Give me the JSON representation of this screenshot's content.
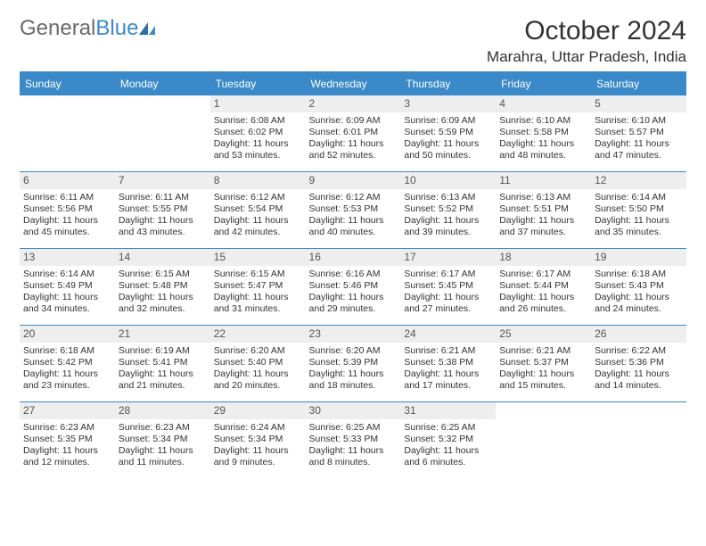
{
  "logo": {
    "text1": "General",
    "text2": "Blue"
  },
  "title": {
    "month": "October 2024",
    "location": "Marahra, Uttar Pradesh, India"
  },
  "colors": {
    "brand_blue": "#3a8ac9",
    "header_bg": "#3a8ac9",
    "header_text": "#ffffff",
    "daynum_bg": "#eeeeee",
    "text": "#333333",
    "logo_gray": "#6a6a6a"
  },
  "day_headers": [
    "Sunday",
    "Monday",
    "Tuesday",
    "Wednesday",
    "Thursday",
    "Friday",
    "Saturday"
  ],
  "weeks": [
    [
      null,
      null,
      {
        "n": "1",
        "sr": "Sunrise: 6:08 AM",
        "ss": "Sunset: 6:02 PM",
        "d1": "Daylight: 11 hours",
        "d2": "and 53 minutes."
      },
      {
        "n": "2",
        "sr": "Sunrise: 6:09 AM",
        "ss": "Sunset: 6:01 PM",
        "d1": "Daylight: 11 hours",
        "d2": "and 52 minutes."
      },
      {
        "n": "3",
        "sr": "Sunrise: 6:09 AM",
        "ss": "Sunset: 5:59 PM",
        "d1": "Daylight: 11 hours",
        "d2": "and 50 minutes."
      },
      {
        "n": "4",
        "sr": "Sunrise: 6:10 AM",
        "ss": "Sunset: 5:58 PM",
        "d1": "Daylight: 11 hours",
        "d2": "and 48 minutes."
      },
      {
        "n": "5",
        "sr": "Sunrise: 6:10 AM",
        "ss": "Sunset: 5:57 PM",
        "d1": "Daylight: 11 hours",
        "d2": "and 47 minutes."
      }
    ],
    [
      {
        "n": "6",
        "sr": "Sunrise: 6:11 AM",
        "ss": "Sunset: 5:56 PM",
        "d1": "Daylight: 11 hours",
        "d2": "and 45 minutes."
      },
      {
        "n": "7",
        "sr": "Sunrise: 6:11 AM",
        "ss": "Sunset: 5:55 PM",
        "d1": "Daylight: 11 hours",
        "d2": "and 43 minutes."
      },
      {
        "n": "8",
        "sr": "Sunrise: 6:12 AM",
        "ss": "Sunset: 5:54 PM",
        "d1": "Daylight: 11 hours",
        "d2": "and 42 minutes."
      },
      {
        "n": "9",
        "sr": "Sunrise: 6:12 AM",
        "ss": "Sunset: 5:53 PM",
        "d1": "Daylight: 11 hours",
        "d2": "and 40 minutes."
      },
      {
        "n": "10",
        "sr": "Sunrise: 6:13 AM",
        "ss": "Sunset: 5:52 PM",
        "d1": "Daylight: 11 hours",
        "d2": "and 39 minutes."
      },
      {
        "n": "11",
        "sr": "Sunrise: 6:13 AM",
        "ss": "Sunset: 5:51 PM",
        "d1": "Daylight: 11 hours",
        "d2": "and 37 minutes."
      },
      {
        "n": "12",
        "sr": "Sunrise: 6:14 AM",
        "ss": "Sunset: 5:50 PM",
        "d1": "Daylight: 11 hours",
        "d2": "and 35 minutes."
      }
    ],
    [
      {
        "n": "13",
        "sr": "Sunrise: 6:14 AM",
        "ss": "Sunset: 5:49 PM",
        "d1": "Daylight: 11 hours",
        "d2": "and 34 minutes."
      },
      {
        "n": "14",
        "sr": "Sunrise: 6:15 AM",
        "ss": "Sunset: 5:48 PM",
        "d1": "Daylight: 11 hours",
        "d2": "and 32 minutes."
      },
      {
        "n": "15",
        "sr": "Sunrise: 6:15 AM",
        "ss": "Sunset: 5:47 PM",
        "d1": "Daylight: 11 hours",
        "d2": "and 31 minutes."
      },
      {
        "n": "16",
        "sr": "Sunrise: 6:16 AM",
        "ss": "Sunset: 5:46 PM",
        "d1": "Daylight: 11 hours",
        "d2": "and 29 minutes."
      },
      {
        "n": "17",
        "sr": "Sunrise: 6:17 AM",
        "ss": "Sunset: 5:45 PM",
        "d1": "Daylight: 11 hours",
        "d2": "and 27 minutes."
      },
      {
        "n": "18",
        "sr": "Sunrise: 6:17 AM",
        "ss": "Sunset: 5:44 PM",
        "d1": "Daylight: 11 hours",
        "d2": "and 26 minutes."
      },
      {
        "n": "19",
        "sr": "Sunrise: 6:18 AM",
        "ss": "Sunset: 5:43 PM",
        "d1": "Daylight: 11 hours",
        "d2": "and 24 minutes."
      }
    ],
    [
      {
        "n": "20",
        "sr": "Sunrise: 6:18 AM",
        "ss": "Sunset: 5:42 PM",
        "d1": "Daylight: 11 hours",
        "d2": "and 23 minutes."
      },
      {
        "n": "21",
        "sr": "Sunrise: 6:19 AM",
        "ss": "Sunset: 5:41 PM",
        "d1": "Daylight: 11 hours",
        "d2": "and 21 minutes."
      },
      {
        "n": "22",
        "sr": "Sunrise: 6:20 AM",
        "ss": "Sunset: 5:40 PM",
        "d1": "Daylight: 11 hours",
        "d2": "and 20 minutes."
      },
      {
        "n": "23",
        "sr": "Sunrise: 6:20 AM",
        "ss": "Sunset: 5:39 PM",
        "d1": "Daylight: 11 hours",
        "d2": "and 18 minutes."
      },
      {
        "n": "24",
        "sr": "Sunrise: 6:21 AM",
        "ss": "Sunset: 5:38 PM",
        "d1": "Daylight: 11 hours",
        "d2": "and 17 minutes."
      },
      {
        "n": "25",
        "sr": "Sunrise: 6:21 AM",
        "ss": "Sunset: 5:37 PM",
        "d1": "Daylight: 11 hours",
        "d2": "and 15 minutes."
      },
      {
        "n": "26",
        "sr": "Sunrise: 6:22 AM",
        "ss": "Sunset: 5:36 PM",
        "d1": "Daylight: 11 hours",
        "d2": "and 14 minutes."
      }
    ],
    [
      {
        "n": "27",
        "sr": "Sunrise: 6:23 AM",
        "ss": "Sunset: 5:35 PM",
        "d1": "Daylight: 11 hours",
        "d2": "and 12 minutes."
      },
      {
        "n": "28",
        "sr": "Sunrise: 6:23 AM",
        "ss": "Sunset: 5:34 PM",
        "d1": "Daylight: 11 hours",
        "d2": "and 11 minutes."
      },
      {
        "n": "29",
        "sr": "Sunrise: 6:24 AM",
        "ss": "Sunset: 5:34 PM",
        "d1": "Daylight: 11 hours",
        "d2": "and 9 minutes."
      },
      {
        "n": "30",
        "sr": "Sunrise: 6:25 AM",
        "ss": "Sunset: 5:33 PM",
        "d1": "Daylight: 11 hours",
        "d2": "and 8 minutes."
      },
      {
        "n": "31",
        "sr": "Sunrise: 6:25 AM",
        "ss": "Sunset: 5:32 PM",
        "d1": "Daylight: 11 hours",
        "d2": "and 6 minutes."
      },
      null,
      null
    ]
  ]
}
